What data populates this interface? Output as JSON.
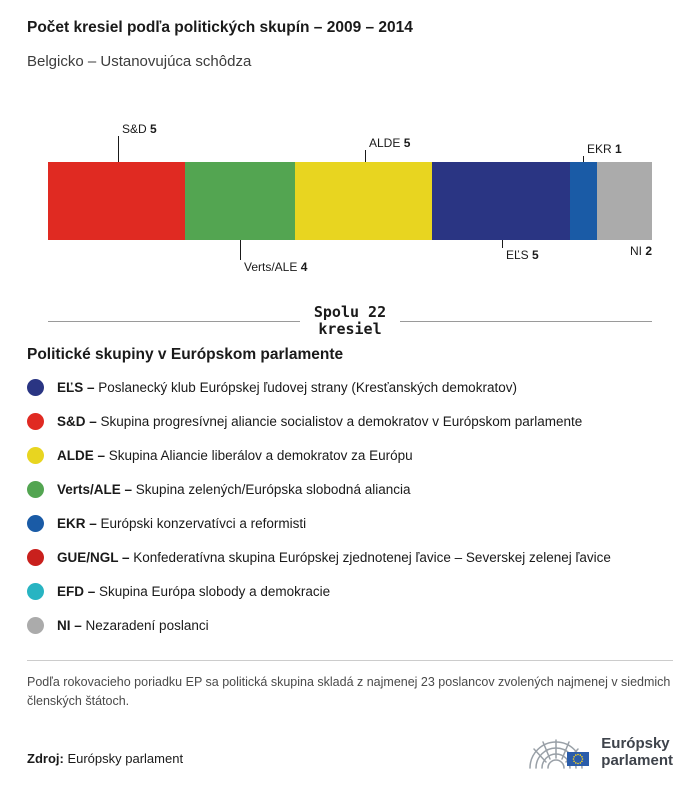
{
  "header": {
    "title": "Počet kresiel podľa politických skupín – 2009 – 2014",
    "subtitle": "Belgicko – Ustanovujúca schôdza"
  },
  "chart_data": {
    "type": "bar",
    "variant": "stacked-horizontal",
    "title": "Počet kresiel podľa politických skupín – 2009 – 2014",
    "subtitle": "Belgicko – Ustanovujúca schôdza",
    "total_seats": 22,
    "total_label_line1": "Spolu 22",
    "total_label_line2": "kresiel",
    "segments": [
      {
        "name": "S&D",
        "value": 5,
        "color": "#e02a22",
        "label_position": "top"
      },
      {
        "name": "Verts/ALE",
        "value": 4,
        "color": "#53a551",
        "label_position": "bottom"
      },
      {
        "name": "ALDE",
        "value": 5,
        "color": "#e8d520",
        "label_position": "top"
      },
      {
        "name": "EĽS",
        "value": 5,
        "color": "#2a3583",
        "label_position": "bottom"
      },
      {
        "name": "EKR",
        "value": 1,
        "color": "#1a5ba6",
        "label_position": "top"
      },
      {
        "name": "NI",
        "value": 2,
        "color": "#ababab",
        "label_position": "bottom"
      }
    ]
  },
  "legend": {
    "title": "Politické skupiny v Európskom parlamente",
    "items": [
      {
        "key": "els",
        "name": "EĽS –",
        "description": "Poslanecký klub Európskej ľudovej strany (Kresťanských demokratov)",
        "color": "#2a3583"
      },
      {
        "key": "sd",
        "name": "S&D –",
        "description": "Skupina progresívnej aliancie socialistov a demokratov v Európskom parlamente",
        "color": "#e02a22"
      },
      {
        "key": "alde",
        "name": "ALDE –",
        "description": "Skupina Aliancie liberálov a demokratov za Európu",
        "color": "#e8d520"
      },
      {
        "key": "verts-ale",
        "name": "Verts/ALE –",
        "description": "Skupina zelených/Európska slobodná aliancia",
        "color": "#53a551"
      },
      {
        "key": "ekr",
        "name": "EKR –",
        "description": "Európski konzervatívci a reformisti",
        "color": "#1a5ba6"
      },
      {
        "key": "gue-ngl",
        "name": "GUE/NGL –",
        "description": "Konfederatívna skupina Európskej zjednotenej ľavice – Severskej zelenej ľavice",
        "color": "#c9201d"
      },
      {
        "key": "efd",
        "name": "EFD –",
        "description": "Skupina Európa slobody a demokracie",
        "color": "#28b4c2"
      },
      {
        "key": "ni",
        "name": "NI –",
        "description": "Nezaradení poslanci",
        "color": "#ababab"
      }
    ]
  },
  "footnote": "Podľa rokovacieho poriadku EP sa politická skupina skladá z najmenej 23 poslancov zvolených najmenej v siedmich členských štátoch.",
  "source": {
    "label": "Zdroj:",
    "value": "Európsky parlament"
  },
  "logo": {
    "line1": "Európsky",
    "line2": "parlament"
  }
}
